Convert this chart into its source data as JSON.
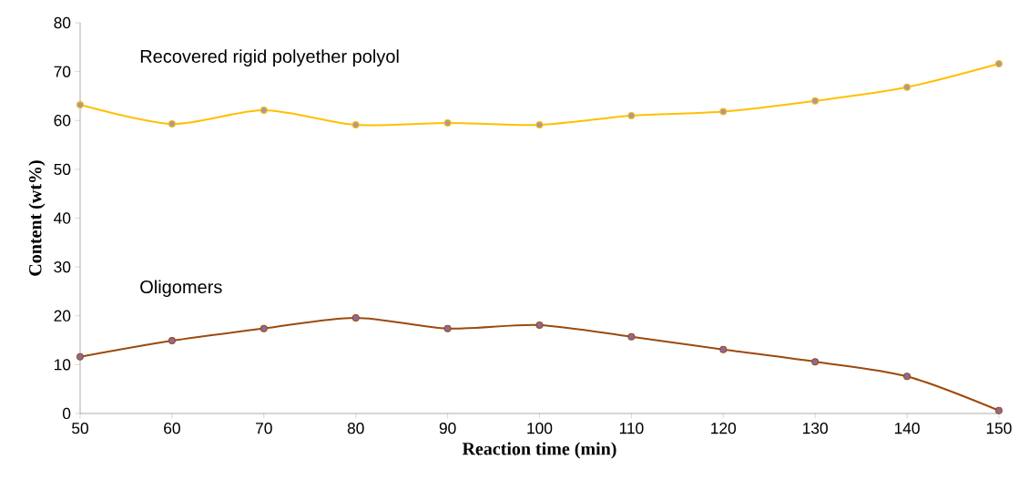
{
  "chart_data": {
    "type": "line",
    "xlabel": "Reaction time (min)",
    "ylabel": "Content (wt%)",
    "x": [
      50,
      60,
      70,
      80,
      90,
      100,
      110,
      120,
      130,
      140,
      150
    ],
    "series": [
      {
        "name": "Recovered rigid polyether polyol",
        "color": "#ffc000",
        "values": [
          63.2,
          59.3,
          62.1,
          59.1,
          59.5,
          59.1,
          61.0,
          61.8,
          64.0,
          66.8,
          71.6
        ]
      },
      {
        "name": "Oligomers",
        "color": "#9c4a0c",
        "values": [
          11.6,
          14.9,
          17.4,
          19.6,
          17.4,
          18.1,
          15.7,
          13.1,
          10.6,
          7.6,
          0.6
        ]
      }
    ],
    "xlim": [
      50,
      150
    ],
    "ylim": [
      0,
      80
    ],
    "xticks": [
      50,
      60,
      70,
      80,
      90,
      100,
      110,
      120,
      130,
      140,
      150
    ],
    "yticks": [
      0,
      10,
      20,
      30,
      40,
      50,
      60,
      70,
      80
    ],
    "grid": false,
    "legend": false,
    "marker": "circle",
    "line_style": "solid"
  }
}
